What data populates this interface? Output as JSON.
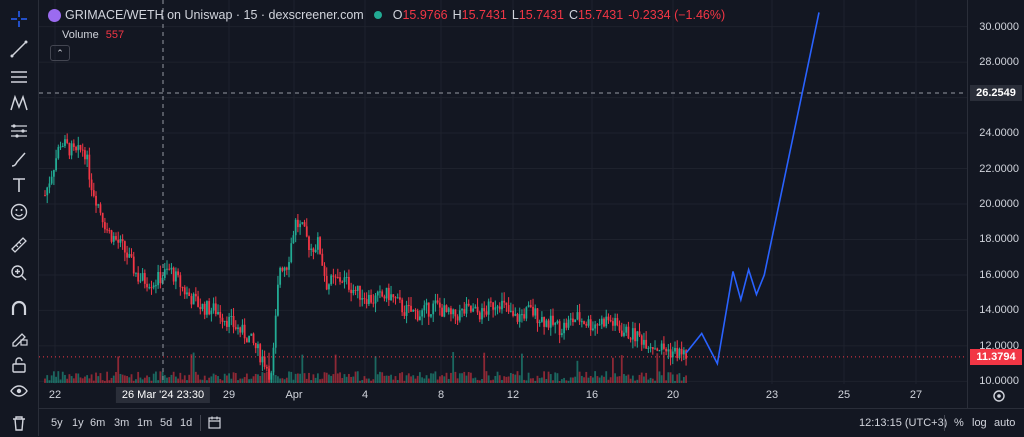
{
  "legend": {
    "symbol": "GRIMACE/WETH on Uniswap · 15 · dexscreener.com",
    "open_label": "O",
    "open": "15.9766",
    "high_label": "H",
    "high": "15.7431",
    "low_label": "L",
    "low": "15.7431",
    "close_label": "C",
    "close": "15.7431",
    "change": "-0.2334 (−1.46%)",
    "volume_label": "Volume",
    "volume": "557",
    "collapse_symbol": "⌃"
  },
  "price_axis": {
    "ticks": [
      "30.0000",
      "28.0000",
      "26.2549",
      "24.0000",
      "22.0000",
      "20.0000",
      "18.0000",
      "16.0000",
      "14.0000",
      "12.0000",
      "11.3794",
      "10.0000"
    ],
    "crosshair_price": "26.2549",
    "last_price": "11.3794"
  },
  "time_axis": {
    "ticks": [
      "22",
      "29",
      "Apr",
      "4",
      "8",
      "12",
      "16",
      "20",
      "23",
      "25",
      "27"
    ],
    "crosshair_time": "26 Mar '24   23:30"
  },
  "bottom_bar": {
    "ranges": [
      "5y",
      "1y",
      "6m",
      "3m",
      "1m",
      "5d",
      "1d"
    ],
    "clock": "12:13:15 (UTC+3)",
    "percent": "%",
    "log": "log",
    "auto": "auto"
  },
  "colors": {
    "up": "#22ab94",
    "down": "#f23645",
    "drawing": "#2962ff",
    "background": "#131722"
  },
  "chart_data": {
    "type": "candlestick",
    "title": "GRIMACE/WETH on Uniswap · 15 · dexscreener.com",
    "interval": "15",
    "ylim": [
      8.5,
      31.5
    ],
    "y_ticks": [
      10,
      12,
      14,
      16,
      18,
      20,
      22,
      24,
      26,
      28,
      30
    ],
    "x_ticks": [
      "22",
      "29",
      "Apr",
      "4",
      "8",
      "12",
      "16",
      "20",
      "23",
      "25",
      "27"
    ],
    "last_price": 11.3794,
    "last_ohlc": {
      "open": 15.9766,
      "high": 15.7431,
      "low": 15.7431,
      "close": 15.7431,
      "change": -0.2334,
      "change_pct": -1.46
    },
    "volume_last": 557,
    "price_path": [
      {
        "t": 0,
        "p": 20.5
      },
      {
        "t": 2,
        "p": 23.5
      },
      {
        "t": 4,
        "p": 22.8
      },
      {
        "t": 5,
        "p": 23.2
      },
      {
        "t": 6,
        "p": 21.0
      },
      {
        "t": 8,
        "p": 18.5
      },
      {
        "t": 10,
        "p": 17.5
      },
      {
        "t": 12,
        "p": 15.8
      },
      {
        "t": 14,
        "p": 15.6
      },
      {
        "t": 16,
        "p": 16.3
      },
      {
        "t": 18,
        "p": 15.0
      },
      {
        "t": 20,
        "p": 14.2
      },
      {
        "t": 22,
        "p": 14.0
      },
      {
        "t": 24,
        "p": 13.2
      },
      {
        "t": 26,
        "p": 12.5
      },
      {
        "t": 28,
        "p": 11.2
      },
      {
        "t": 29,
        "p": 10.2
      },
      {
        "t": 30,
        "p": 16.5
      },
      {
        "t": 31,
        "p": 16.6
      },
      {
        "t": 32,
        "p": 19.0
      },
      {
        "t": 33,
        "p": 18.5
      },
      {
        "t": 34,
        "p": 17.5
      },
      {
        "t": 35,
        "p": 17.8
      },
      {
        "t": 36,
        "p": 15.5
      },
      {
        "t": 38,
        "p": 15.8
      },
      {
        "t": 40,
        "p": 15.0
      },
      {
        "t": 42,
        "p": 14.6
      },
      {
        "t": 44,
        "p": 14.9
      },
      {
        "t": 46,
        "p": 14.0
      },
      {
        "t": 48,
        "p": 13.8
      },
      {
        "t": 50,
        "p": 14.3
      },
      {
        "t": 52,
        "p": 13.6
      },
      {
        "t": 54,
        "p": 14.0
      },
      {
        "t": 56,
        "p": 13.8
      },
      {
        "t": 58,
        "p": 14.6
      },
      {
        "t": 60,
        "p": 13.5
      },
      {
        "t": 62,
        "p": 14.0
      },
      {
        "t": 64,
        "p": 13.4
      },
      {
        "t": 66,
        "p": 13.0
      },
      {
        "t": 68,
        "p": 13.6
      },
      {
        "t": 70,
        "p": 13.2
      },
      {
        "t": 72,
        "p": 13.5
      },
      {
        "t": 74,
        "p": 12.8
      },
      {
        "t": 76,
        "p": 12.5
      },
      {
        "t": 78,
        "p": 12.0
      },
      {
        "t": 80,
        "p": 11.7
      },
      {
        "t": 82,
        "p": 11.5
      }
    ],
    "drawing_projection": [
      {
        "t": 82,
        "p": 11.6
      },
      {
        "t": 84,
        "p": 12.7
      },
      {
        "t": 86,
        "p": 11.0
      },
      {
        "t": 88,
        "p": 16.2
      },
      {
        "t": 89,
        "p": 14.6
      },
      {
        "t": 90,
        "p": 16.3
      },
      {
        "t": 91,
        "p": 14.9
      },
      {
        "t": 92,
        "p": 16.0
      },
      {
        "t": 99,
        "p": 30.8
      }
    ]
  }
}
